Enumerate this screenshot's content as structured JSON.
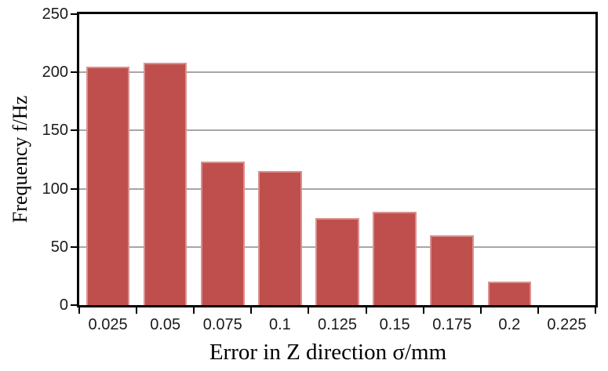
{
  "figure": {
    "background": "#FFFFFF"
  },
  "chart_data": {
    "type": "bar",
    "title": "",
    "xlabel": "Error in Z direction σ/mm",
    "ylabel": "Frequency f/Hz",
    "categories": [
      "0.025",
      "0.05",
      "0.075",
      "0.1",
      "0.125",
      "0.15",
      "0.175",
      "0.2",
      "0.225"
    ],
    "values": [
      205,
      208,
      123,
      115,
      75,
      80,
      60,
      20,
      0
    ],
    "ylim": [
      0,
      250
    ],
    "y_ticks": [
      0,
      50,
      100,
      150,
      200,
      250
    ],
    "grid": "horizontal",
    "legend": "none",
    "bar_color": "#BF4F4D",
    "bar_edge_color": "#D9918E",
    "gridline_color": "#A6A6A6",
    "axis_color": "#000000",
    "tick_label_color": "#1A1A1A"
  }
}
